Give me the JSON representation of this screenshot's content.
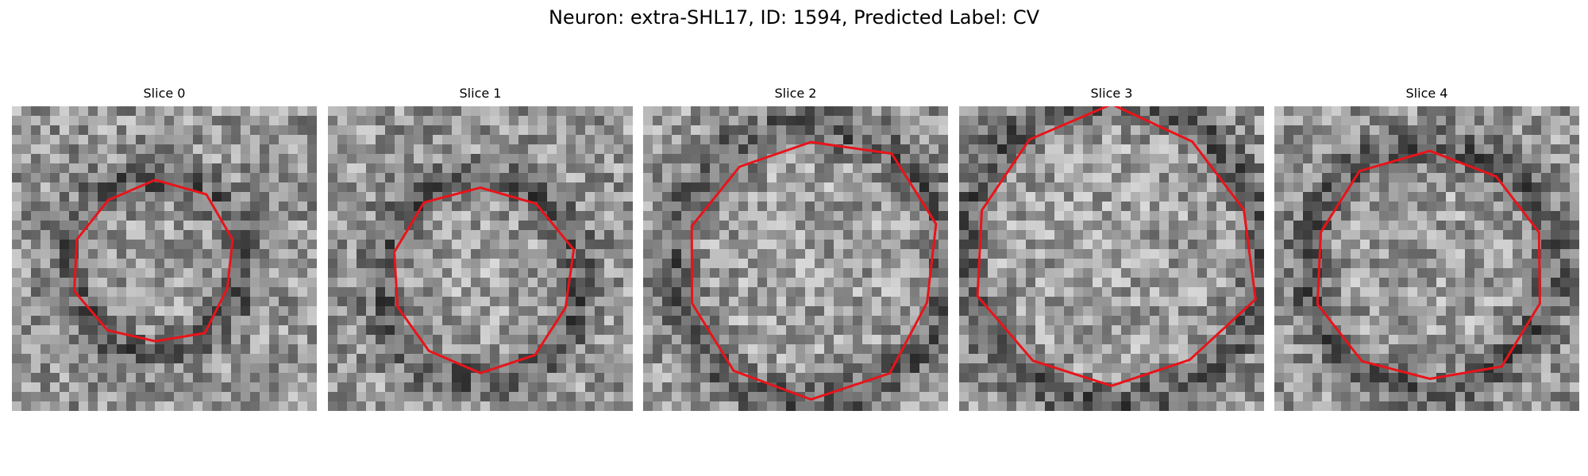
{
  "figure": {
    "title": "Neuron: extra-SHL17, ID: 1594, Predicted Label: CV"
  },
  "colors": {
    "contour": "#e8141a",
    "background": "#ffffff"
  },
  "panels": [
    {
      "label": "Slice 0",
      "seed": 11,
      "contour_radius": 0.27,
      "center": [
        0.47,
        0.52
      ]
    },
    {
      "label": "Slice 1",
      "seed": 23,
      "contour_radius": 0.31,
      "center": [
        0.5,
        0.57
      ]
    },
    {
      "label": "Slice 2",
      "seed": 37,
      "contour_radius": 0.43,
      "center": [
        0.55,
        0.52
      ]
    },
    {
      "label": "Slice 3",
      "seed": 51,
      "contour_radius": 0.47,
      "center": [
        0.5,
        0.48
      ]
    },
    {
      "label": "Slice 4",
      "seed": 67,
      "contour_radius": 0.38,
      "center": [
        0.51,
        0.53
      ]
    }
  ]
}
